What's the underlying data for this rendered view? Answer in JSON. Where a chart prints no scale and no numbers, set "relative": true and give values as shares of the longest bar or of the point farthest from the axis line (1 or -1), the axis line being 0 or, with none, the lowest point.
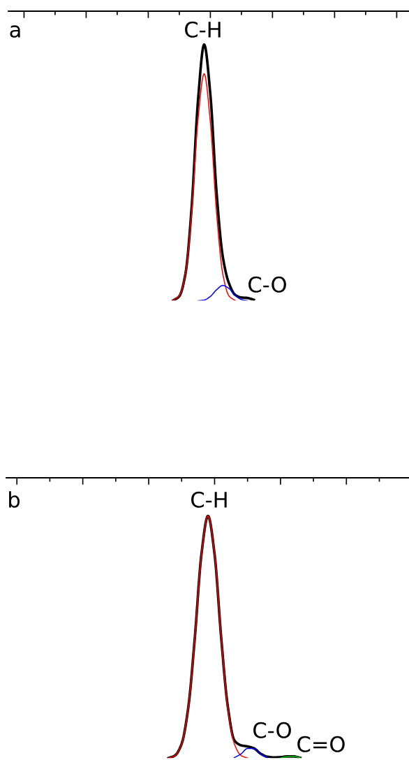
{
  "chart_data": [
    {
      "type": "line",
      "relative": true,
      "annotations": [
        "a",
        "C-H",
        "C-O"
      ],
      "categories": [
        null,
        null,
        null,
        null,
        null,
        null,
        null,
        null,
        null,
        null,
        null,
        null,
        null,
        null,
        null,
        null,
        null,
        null,
        null,
        null,
        null,
        null,
        null,
        null,
        null,
        null,
        null,
        null,
        null,
        null,
        null,
        null,
        null,
        null,
        null,
        null,
        null,
        null,
        null,
        null,
        null,
        null,
        null,
        null,
        null,
        null,
        null,
        null,
        null,
        null,
        null,
        null,
        null,
        null,
        null,
        null,
        null,
        null,
        null,
        null,
        null,
        null,
        null,
        null,
        null
      ],
      "series": [
        {
          "color": "#000000",
          "values": [
            null,
            null,
            null,
            null,
            null,
            null,
            null,
            null,
            null,
            null,
            null,
            null,
            null,
            null,
            null,
            null,
            null,
            null,
            null,
            null,
            null,
            null,
            null,
            null,
            null,
            null,
            0.002,
            0.019,
            0.108,
            0.37,
            0.779,
            1,
            0.805,
            0.423,
            0.173,
            0.069,
            0.024,
            0.014,
            0.012,
            0.005,
            null,
            null,
            null,
            null,
            null,
            null,
            null,
            null,
            null,
            null,
            null,
            null,
            null,
            null,
            null,
            null,
            null,
            null,
            null,
            null,
            null,
            null,
            null,
            null,
            null
          ]
        },
        {
          "color": "#ff0000",
          "values": [
            null,
            null,
            null,
            null,
            null,
            null,
            null,
            null,
            null,
            null,
            null,
            null,
            null,
            null,
            null,
            null,
            null,
            null,
            null,
            null,
            null,
            null,
            null,
            null,
            null,
            null,
            0.003,
            0.021,
            0.109,
            0.351,
            0.705,
            0.886,
            0.697,
            0.343,
            0.106,
            0.02,
            0.002,
            null,
            null,
            null,
            null,
            null,
            null,
            null,
            null,
            null,
            null,
            null,
            null,
            null,
            null,
            null,
            null,
            null,
            null,
            null,
            null,
            null,
            null,
            null,
            null,
            null,
            null,
            null,
            null
          ]
        },
        {
          "color": "#0000ff",
          "values": [
            null,
            null,
            null,
            null,
            null,
            null,
            null,
            null,
            null,
            null,
            null,
            null,
            null,
            null,
            null,
            null,
            null,
            null,
            null,
            null,
            null,
            null,
            null,
            null,
            null,
            null,
            null,
            null,
            null,
            null,
            0.001,
            0.004,
            0.018,
            0.044,
            0.061,
            0.049,
            0.022,
            0.006,
            0.001,
            null,
            null,
            null,
            null,
            null,
            null,
            null,
            null,
            null,
            null,
            null,
            null,
            null,
            null,
            null,
            null,
            null,
            null,
            null,
            null,
            null,
            null,
            null,
            null,
            null,
            null
          ]
        }
      ]
    },
    {
      "type": "line",
      "relative": true,
      "annotations": [
        "b",
        "C-H",
        "C-O",
        "C=O"
      ],
      "categories": [
        null,
        null,
        null,
        null,
        null,
        null,
        null,
        null,
        null,
        null,
        null,
        null,
        null,
        null,
        null,
        null,
        null,
        null,
        null,
        null,
        null,
        null,
        null,
        null,
        null,
        null,
        null,
        null,
        null,
        null,
        null,
        null,
        null,
        null,
        null,
        null,
        null,
        null,
        null,
        null,
        null,
        null,
        null,
        null,
        null,
        null,
        null,
        null,
        null,
        null,
        null,
        null,
        null,
        null,
        null,
        null,
        null,
        null,
        null,
        null,
        null
      ],
      "series": [
        {
          "color": "#000000",
          "values": [
            null,
            null,
            null,
            null,
            null,
            null,
            null,
            null,
            null,
            null,
            null,
            null,
            null,
            null,
            null,
            null,
            null,
            null,
            null,
            null,
            null,
            null,
            null,
            null,
            0.002,
            0.013,
            0.061,
            0.209,
            0.498,
            0.841,
            1,
            0.841,
            0.498,
            0.215,
            0.075,
            0.055,
            0.05,
            0.042,
            0.02,
            0.008,
            0.005,
            0.006,
            0.009,
            0.009,
            0.003,
            null,
            null,
            null,
            null,
            null,
            null,
            null,
            null,
            null,
            null,
            null,
            null,
            null,
            null,
            null,
            null
          ]
        },
        {
          "color": "#ff0000",
          "values": [
            null,
            null,
            null,
            null,
            null,
            null,
            null,
            null,
            null,
            null,
            null,
            null,
            null,
            null,
            null,
            null,
            null,
            null,
            null,
            null,
            null,
            null,
            null,
            null,
            0.002,
            0.013,
            0.061,
            0.209,
            0.498,
            0.841,
            1,
            0.841,
            0.498,
            0.209,
            0.061,
            0.013,
            0.002,
            null,
            null,
            null,
            null,
            null,
            null,
            null,
            null,
            null,
            null,
            null,
            null,
            null,
            null,
            null,
            null,
            null,
            null,
            null,
            null,
            null,
            null,
            null,
            null
          ]
        },
        {
          "color": "#0000ff",
          "values": [
            null,
            null,
            null,
            null,
            null,
            null,
            null,
            null,
            null,
            null,
            null,
            null,
            null,
            null,
            null,
            null,
            null,
            null,
            null,
            null,
            null,
            null,
            null,
            null,
            null,
            null,
            null,
            null,
            null,
            null,
            null,
            null,
            null,
            null,
            0.004,
            0.019,
            0.042,
            0.041,
            0.018,
            0.003,
            null,
            null,
            null,
            null,
            null,
            null,
            null,
            null,
            null,
            null,
            null,
            null,
            null,
            null,
            null,
            null,
            null,
            null,
            null,
            null,
            null
          ]
        },
        {
          "color": "#00c000",
          "values": [
            null,
            null,
            null,
            null,
            null,
            null,
            null,
            null,
            null,
            null,
            null,
            null,
            null,
            null,
            null,
            null,
            null,
            null,
            null,
            null,
            null,
            null,
            null,
            null,
            null,
            null,
            null,
            null,
            null,
            null,
            null,
            null,
            null,
            null,
            null,
            null,
            null,
            null,
            null,
            null,
            null,
            0.002,
            0.008,
            0.009,
            0.003,
            null,
            null,
            null,
            null,
            null,
            null,
            null,
            null,
            null,
            null,
            null,
            null,
            null,
            null,
            null,
            null
          ]
        }
      ]
    }
  ]
}
